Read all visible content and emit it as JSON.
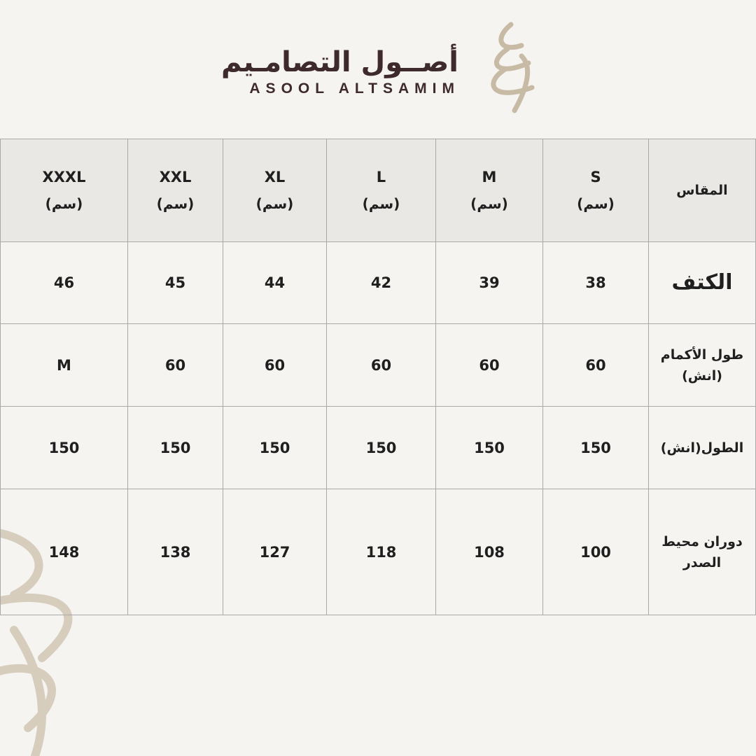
{
  "brand": {
    "name_ar": "أصــول التصامـيم",
    "name_en": "ASOOL ALTSAMIM"
  },
  "table": {
    "corner_label": "المقاس",
    "unit": "(سم)",
    "sizes": [
      "S",
      "M",
      "L",
      "XL",
      "XXL",
      "XXXL"
    ],
    "rows": [
      {
        "label": "الكتف",
        "values": [
          "38",
          "39",
          "42",
          "44",
          "45",
          "46"
        ]
      },
      {
        "label": "طول الأكمام (انش)",
        "values": [
          "60",
          "60",
          "60",
          "60",
          "60",
          "M"
        ]
      },
      {
        "label": "الطول(انش)",
        "values": [
          "150",
          "150",
          "150",
          "150",
          "150",
          "150"
        ]
      },
      {
        "label": "دوران محيط الصدر",
        "values": [
          "100",
          "108",
          "118",
          "127",
          "138",
          "148"
        ]
      }
    ]
  },
  "colors": {
    "background": "#f5f4f0",
    "header": "#e9e8e4",
    "brand_text": "#3e2a2c",
    "ornament": "#c8bba6"
  }
}
